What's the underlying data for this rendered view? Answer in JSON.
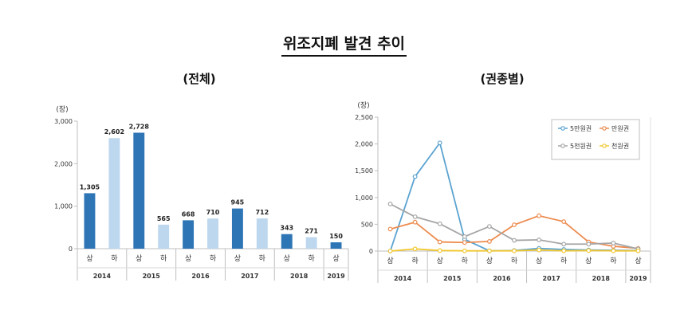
{
  "page": {
    "title": "위조지폐 발견 추이"
  },
  "chart_data": [
    {
      "type": "bar",
      "title": "(전체)",
      "unit_label": "(장)",
      "categories": [
        "상",
        "하",
        "상",
        "하",
        "상",
        "하",
        "상",
        "하",
        "상",
        "하",
        "상"
      ],
      "groups": [
        {
          "label": "2014",
          "span": 2
        },
        {
          "label": "2015",
          "span": 2
        },
        {
          "label": "2016",
          "span": 2
        },
        {
          "label": "2017",
          "span": 2
        },
        {
          "label": "2018",
          "span": 2
        },
        {
          "label": "2019",
          "span": 1
        }
      ],
      "values": [
        1305,
        2602,
        2728,
        565,
        668,
        710,
        945,
        712,
        343,
        271,
        150
      ],
      "value_labels": [
        "1,305",
        "2,602",
        "2,728",
        "565",
        "668",
        "710",
        "945",
        "712",
        "343",
        "271",
        "150"
      ],
      "ylim": [
        0,
        3000
      ],
      "yticks": [
        0,
        1000,
        2000,
        3000
      ],
      "ytick_labels": [
        "0",
        "1,000",
        "2,000",
        "3,000"
      ],
      "colors": {
        "first_half": "#2e75b6",
        "second_half": "#bdd7ee"
      },
      "grid": false
    },
    {
      "type": "line",
      "title": "(권종별)",
      "unit_label": "(장)",
      "categories": [
        "상",
        "하",
        "상",
        "하",
        "상",
        "하",
        "상",
        "하",
        "상",
        "하",
        "상"
      ],
      "groups": [
        {
          "label": "2014",
          "span": 2
        },
        {
          "label": "2015",
          "span": 2
        },
        {
          "label": "2016",
          "span": 2
        },
        {
          "label": "2017",
          "span": 2
        },
        {
          "label": "2018",
          "span": 2
        },
        {
          "label": "2019",
          "span": 1
        }
      ],
      "ylim": [
        0,
        2500
      ],
      "yticks": [
        0,
        500,
        1000,
        1500,
        2000,
        2500
      ],
      "ytick_labels": [
        "0",
        "500",
        "1,000",
        "1,500",
        "2,000",
        "2,500"
      ],
      "legend_position": "top-right",
      "grid": false,
      "series": [
        {
          "name": "5만원권",
          "color": "#5ba3d0",
          "values": [
            0,
            1390,
            2020,
            220,
            5,
            10,
            50,
            30,
            20,
            15,
            10
          ]
        },
        {
          "name": "만원권",
          "color": "#ed8b4e",
          "values": [
            410,
            540,
            170,
            160,
            180,
            490,
            660,
            550,
            170,
            90,
            50
          ]
        },
        {
          "name": "5천원권",
          "color": "#a6a6a6",
          "values": [
            880,
            640,
            510,
            270,
            460,
            200,
            210,
            130,
            130,
            150,
            40
          ]
        },
        {
          "name": "천원권",
          "color": "#f2c832",
          "values": [
            0,
            40,
            10,
            5,
            5,
            5,
            20,
            5,
            10,
            5,
            5
          ]
        }
      ]
    }
  ]
}
